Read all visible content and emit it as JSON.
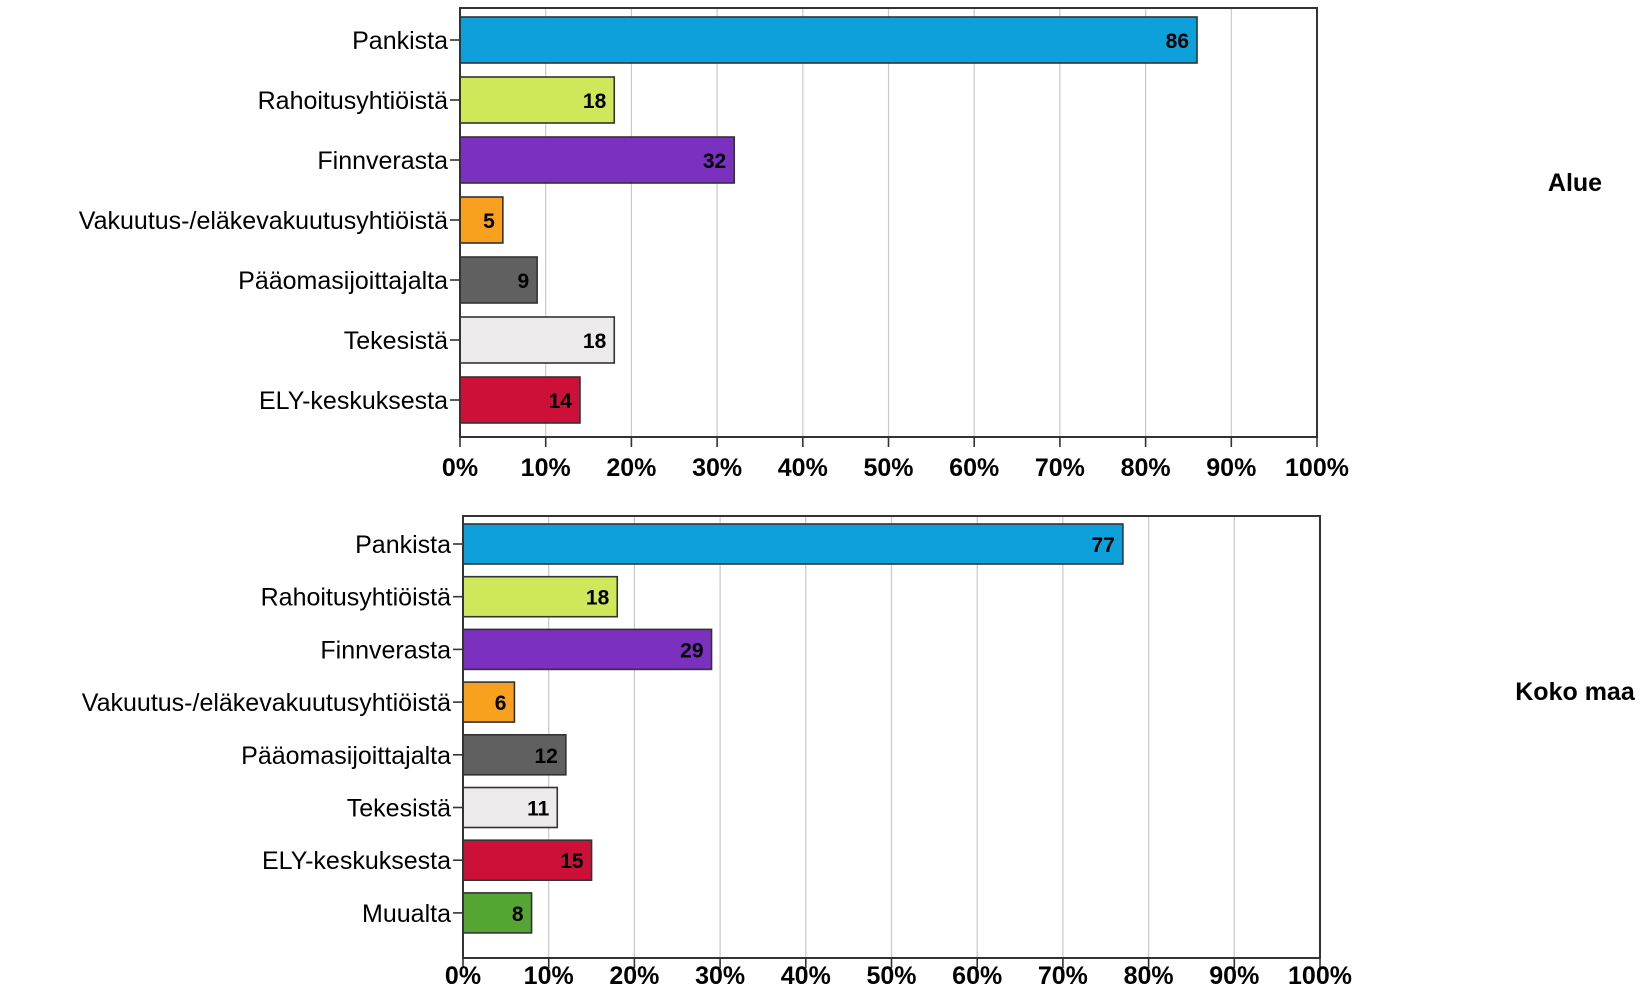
{
  "colors": {
    "Pankista": "#0ea0da",
    "Rahoitusyhtiöistä": "#cfe85a",
    "Finnverasta": "#7b30c0",
    "Vakuutus-/eläkevakuutusyhtiöistä": "#f7a11f",
    "Pääomasijoittajalta": "#606060",
    "Tekesistä": "#eceaea",
    "ELY-keskuksesta": "#cc1038",
    "Muualta": "#55a532"
  },
  "chart_data": [
    {
      "type": "bar",
      "orientation": "horizontal",
      "panel_label": "Alue",
      "categories": [
        "Pankista",
        "Rahoitusyhtiöistä",
        "Finnverasta",
        "Vakuutus-/eläkevakuutusyhtiöistä",
        "Pääomasijoittajalta",
        "Tekesistä",
        "ELY-keskuksesta"
      ],
      "values": [
        86,
        18,
        32,
        5,
        9,
        18,
        14
      ],
      "xlim": [
        0,
        100
      ],
      "xticks": [
        "0%",
        "10%",
        "20%",
        "30%",
        "40%",
        "50%",
        "60%",
        "70%",
        "80%",
        "90%",
        "100%"
      ],
      "grid": true
    },
    {
      "type": "bar",
      "orientation": "horizontal",
      "panel_label": "Koko maa",
      "categories": [
        "Pankista",
        "Rahoitusyhtiöistä",
        "Finnverasta",
        "Vakuutus-/eläkevakuutusyhtiöistä",
        "Pääomasijoittajalta",
        "Tekesistä",
        "ELY-keskuksesta",
        "Muualta"
      ],
      "values": [
        77,
        18,
        29,
        6,
        12,
        11,
        15,
        8
      ],
      "xlim": [
        0,
        100
      ],
      "xticks": [
        "0%",
        "10%",
        "20%",
        "30%",
        "40%",
        "50%",
        "60%",
        "70%",
        "80%",
        "90%",
        "100%"
      ],
      "grid": true
    }
  ]
}
